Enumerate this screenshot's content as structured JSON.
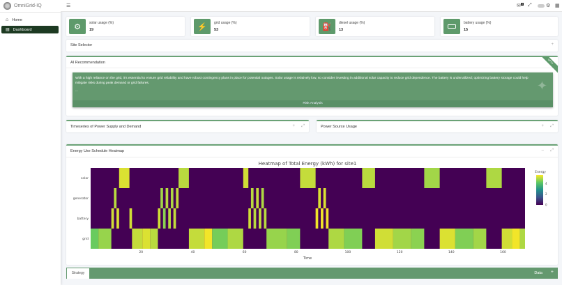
{
  "app": {
    "title": "OmniGrid-IQ"
  },
  "sidebar": {
    "items": [
      {
        "label": "Home",
        "icon": "home-icon"
      },
      {
        "label": "Dashboard",
        "icon": "chart-icon",
        "active": true
      }
    ]
  },
  "topbar": {
    "menu_icon": "hamburger-icon",
    "notification_count": "0",
    "icons": [
      "bell-icon",
      "expand-icon",
      "theme-toggle",
      "gear-icon",
      "grid-icon"
    ]
  },
  "info_boxes": [
    {
      "label": "solar usage (%)",
      "value": "19",
      "icon": "solar-icon"
    },
    {
      "label": "grid usage (%)",
      "value": "53",
      "icon": "bolt-icon"
    },
    {
      "label": "diesel usage (%)",
      "value": "13",
      "icon": "pumpjack-icon"
    },
    {
      "label": "battery usage (%)",
      "value": "15",
      "icon": "battery-icon"
    }
  ],
  "site_selector": {
    "title": "Site Selector"
  },
  "ai": {
    "title": "AI Recommendation",
    "ribbon": "GPT4",
    "text": "With a high reliance on the grid, it's essential to ensure grid reliability and have robust contingency plans in place for potential outages. Solar usage is relatively low, so consider investing in additional solar capacity to reduce grid dependence. The battery is underutilized; optimizing battery storage could help mitigate risks during peak demand or grid failures.",
    "ellipsis": "...",
    "footer": "Risk Analysis"
  },
  "panels": {
    "timeseries": "Timeseries of Power Supply and Demand",
    "source_usage": "Power Source Usage",
    "heatmap": "Energy Use Schedule Heatmap"
  },
  "bottom": {
    "tab": "Strategy",
    "right_label": "Data"
  },
  "colors": {
    "accent": "#5e9a6b",
    "sidebar_active": "#1d3a22"
  },
  "chart_data": {
    "type": "heatmap",
    "title": "Heatmap of Total Energy (kWh) for site1",
    "xlabel": "Time",
    "ylabel": "",
    "xlim": [
      1,
      168
    ],
    "xticks": [
      20,
      40,
      60,
      80,
      100,
      120,
      140,
      160
    ],
    "categories": [
      "solar",
      "generator",
      "battery",
      "grid"
    ],
    "colorbar": {
      "title": "Energy",
      "ticks": [
        0,
        2,
        4
      ],
      "range": [
        0,
        5.6
      ],
      "colorscale": "viridis"
    },
    "rows": [
      {
        "name": "solar",
        "segments": [
          [
            12,
            15,
            5.3
          ],
          [
            35,
            38,
            5.0
          ],
          [
            60,
            61,
            5.2
          ],
          [
            82,
            87,
            5.1
          ],
          [
            106,
            110,
            5.0
          ],
          [
            130,
            135,
            4.8
          ],
          [
            154,
            159,
            4.9
          ]
        ]
      },
      {
        "name": "generator",
        "segments": [
          [
            10,
            10,
            5.0
          ],
          [
            28,
            28,
            4.8
          ],
          [
            30,
            30,
            5.0
          ],
          [
            32,
            32,
            4.9
          ],
          [
            34,
            34,
            5.1
          ],
          [
            63,
            63,
            5.0
          ],
          [
            65,
            65,
            5.1
          ],
          [
            67,
            67,
            4.9
          ],
          [
            89,
            89,
            5.3
          ],
          [
            91,
            91,
            5.3
          ]
        ]
      },
      {
        "name": "battery",
        "segments": [
          [
            9,
            9,
            5.2
          ],
          [
            11,
            11,
            5.3
          ],
          [
            16,
            16,
            5.2
          ],
          [
            27,
            27,
            5.2
          ],
          [
            29,
            29,
            4.6
          ],
          [
            31,
            31,
            5.0
          ],
          [
            33,
            33,
            5.1
          ],
          [
            62,
            62,
            5.2
          ],
          [
            64,
            64,
            5.0
          ],
          [
            66,
            66,
            5.1
          ],
          [
            68,
            68,
            5.0
          ],
          [
            88,
            88,
            5.5
          ],
          [
            90,
            90,
            5.5
          ],
          [
            92,
            92,
            5.5
          ]
        ]
      },
      {
        "name": "grid",
        "segments": [
          [
            1,
            3,
            4.3
          ],
          [
            4,
            8,
            4.7
          ],
          [
            17,
            20,
            5.1
          ],
          [
            21,
            23,
            5.3
          ],
          [
            24,
            26,
            5.0
          ],
          [
            39,
            44,
            5.1
          ],
          [
            45,
            47,
            5.5
          ],
          [
            48,
            53,
            4.4
          ],
          [
            54,
            59,
            4.9
          ],
          [
            69,
            76,
            4.7
          ],
          [
            77,
            81,
            4.5
          ],
          [
            93,
            98,
            4.9
          ],
          [
            99,
            105,
            4.5
          ],
          [
            111,
            117,
            5.2
          ],
          [
            118,
            124,
            4.8
          ],
          [
            125,
            129,
            4.6
          ],
          [
            136,
            141,
            5.3
          ],
          [
            142,
            148,
            4.5
          ],
          [
            149,
            153,
            4.8
          ],
          [
            160,
            163,
            5.2
          ],
          [
            164,
            166,
            5.5
          ],
          [
            167,
            168,
            4.9
          ]
        ]
      }
    ]
  }
}
